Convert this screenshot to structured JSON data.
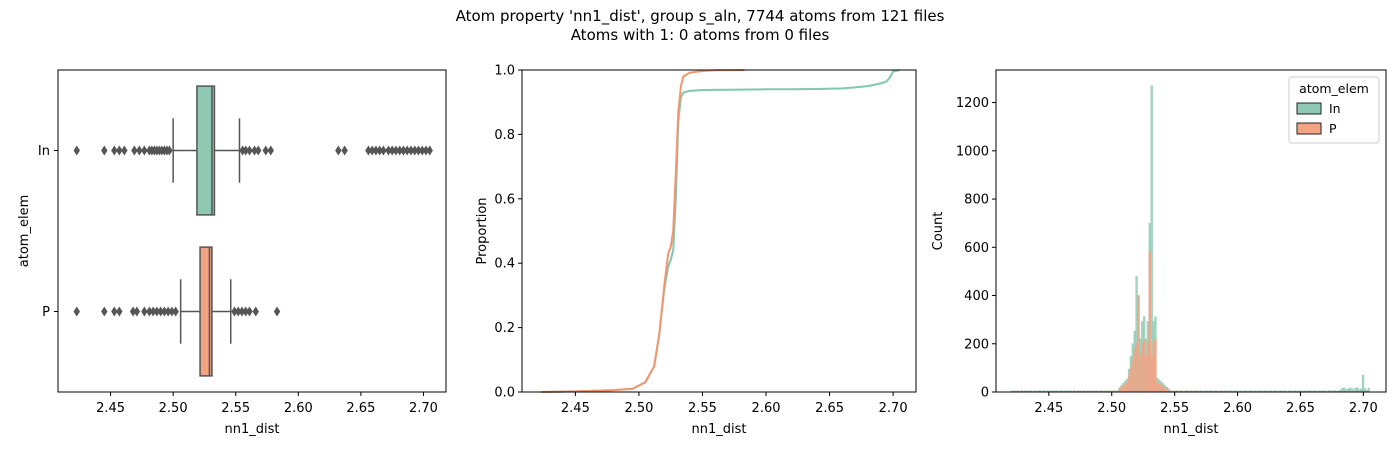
{
  "figure": {
    "title_line1": "Atom property 'nn1_dist', group s_aln, 7744 atoms from 121 files",
    "title_line2": "Atoms with 1: 0 atoms from 0 files"
  },
  "colors": {
    "In": "#8fc9b4",
    "P": "#f3a384",
    "In_line": "#7fc8ae",
    "P_line": "#f4956f",
    "box_edge": "#555555",
    "flier": "#555555"
  },
  "chart_data": [
    {
      "type": "box",
      "xlabel": "nn1_dist",
      "ylabel": "atom_elem",
      "xlim": [
        2.408,
        2.718
      ],
      "xticks": [
        "2.45",
        "2.50",
        "2.55",
        "2.60",
        "2.65",
        "2.70"
      ],
      "categories": [
        "In",
        "P"
      ],
      "boxes": [
        {
          "name": "In",
          "whisker_low": 2.5,
          "q1": 2.519,
          "median": 2.531,
          "q3": 2.533,
          "whisker_high": 2.553,
          "fliers": [
            2.423,
            2.445,
            2.453,
            2.457,
            2.461,
            2.469,
            2.473,
            2.477,
            2.481,
            2.483,
            2.485,
            2.487,
            2.489,
            2.491,
            2.493,
            2.495,
            2.497,
            2.5555,
            2.558,
            2.561,
            2.565,
            2.568,
            2.574,
            2.578,
            2.632,
            2.637,
            2.656,
            2.659,
            2.662,
            2.665,
            2.668,
            2.672,
            2.675,
            2.678,
            2.681,
            2.684,
            2.687,
            2.69,
            2.693,
            2.696,
            2.699,
            2.702,
            2.705
          ]
        },
        {
          "name": "P",
          "whisker_low": 2.506,
          "q1": 2.5215,
          "median": 2.529,
          "q3": 2.531,
          "whisker_high": 2.546,
          "fliers": [
            2.423,
            2.445,
            2.453,
            2.457,
            2.468,
            2.471,
            2.477,
            2.481,
            2.484,
            2.487,
            2.49,
            2.493,
            2.496,
            2.499,
            2.502,
            2.549,
            2.552,
            2.555,
            2.558,
            2.561,
            2.566,
            2.583
          ]
        }
      ]
    },
    {
      "type": "line",
      "xlabel": "nn1_dist",
      "ylabel": "Proportion",
      "xlim": [
        2.408,
        2.718
      ],
      "ylim": [
        0,
        1
      ],
      "xticks": [
        "2.45",
        "2.50",
        "2.55",
        "2.60",
        "2.65",
        "2.70"
      ],
      "yticks": [
        "0.0",
        "0.2",
        "0.4",
        "0.6",
        "0.8",
        "1.0"
      ],
      "series": [
        {
          "name": "In",
          "x": [
            2.423,
            2.45,
            2.48,
            2.495,
            2.505,
            2.512,
            2.516,
            2.52,
            2.523,
            2.525,
            2.527,
            2.529,
            2.531,
            2.533,
            2.535,
            2.54,
            2.55,
            2.58,
            2.6,
            2.62,
            2.64,
            2.66,
            2.67,
            2.68,
            2.69,
            2.695,
            2.697,
            2.7,
            2.705
          ],
          "y": [
            0.0,
            0.002,
            0.006,
            0.01,
            0.03,
            0.08,
            0.18,
            0.32,
            0.39,
            0.41,
            0.44,
            0.6,
            0.84,
            0.915,
            0.93,
            0.935,
            0.938,
            0.939,
            0.94,
            0.94,
            0.941,
            0.943,
            0.946,
            0.95,
            0.958,
            0.965,
            0.975,
            0.995,
            1.0
          ]
        },
        {
          "name": "P",
          "x": [
            2.423,
            2.45,
            2.48,
            2.495,
            2.505,
            2.512,
            2.516,
            2.52,
            2.523,
            2.525,
            2.527,
            2.529,
            2.531,
            2.533,
            2.535,
            2.54,
            2.55,
            2.56,
            2.583
          ],
          "y": [
            0.0,
            0.002,
            0.006,
            0.01,
            0.03,
            0.08,
            0.18,
            0.33,
            0.43,
            0.45,
            0.5,
            0.68,
            0.87,
            0.95,
            0.98,
            0.992,
            0.997,
            0.999,
            1.0
          ]
        }
      ]
    },
    {
      "type": "histogram",
      "xlabel": "nn1_dist",
      "ylabel": "Count",
      "xlim": [
        2.408,
        2.718
      ],
      "ylim": [
        0,
        1335
      ],
      "xticks": [
        "2.45",
        "2.50",
        "2.55",
        "2.60",
        "2.65",
        "2.70"
      ],
      "yticks": [
        "0",
        "200",
        "400",
        "600",
        "800",
        "1000",
        "1200"
      ],
      "bin_width": 0.0015,
      "legend": {
        "title": "atom_elem",
        "entries": [
          "In",
          "P"
        ],
        "position": "upper right"
      },
      "series": [
        {
          "name": "In",
          "peaks": [
            {
              "center": 2.5195,
              "height": 480
            },
            {
              "center": 2.5215,
              "height": 400
            },
            {
              "center": 2.5305,
              "height": 700
            },
            {
              "center": 2.5315,
              "height": 1270
            },
            {
              "center": 2.6995,
              "height": 70
            }
          ]
        },
        {
          "name": "P",
          "peaks": [
            {
              "center": 2.5215,
              "height": 400
            },
            {
              "center": 2.5305,
              "height": 580
            }
          ]
        }
      ]
    }
  ]
}
